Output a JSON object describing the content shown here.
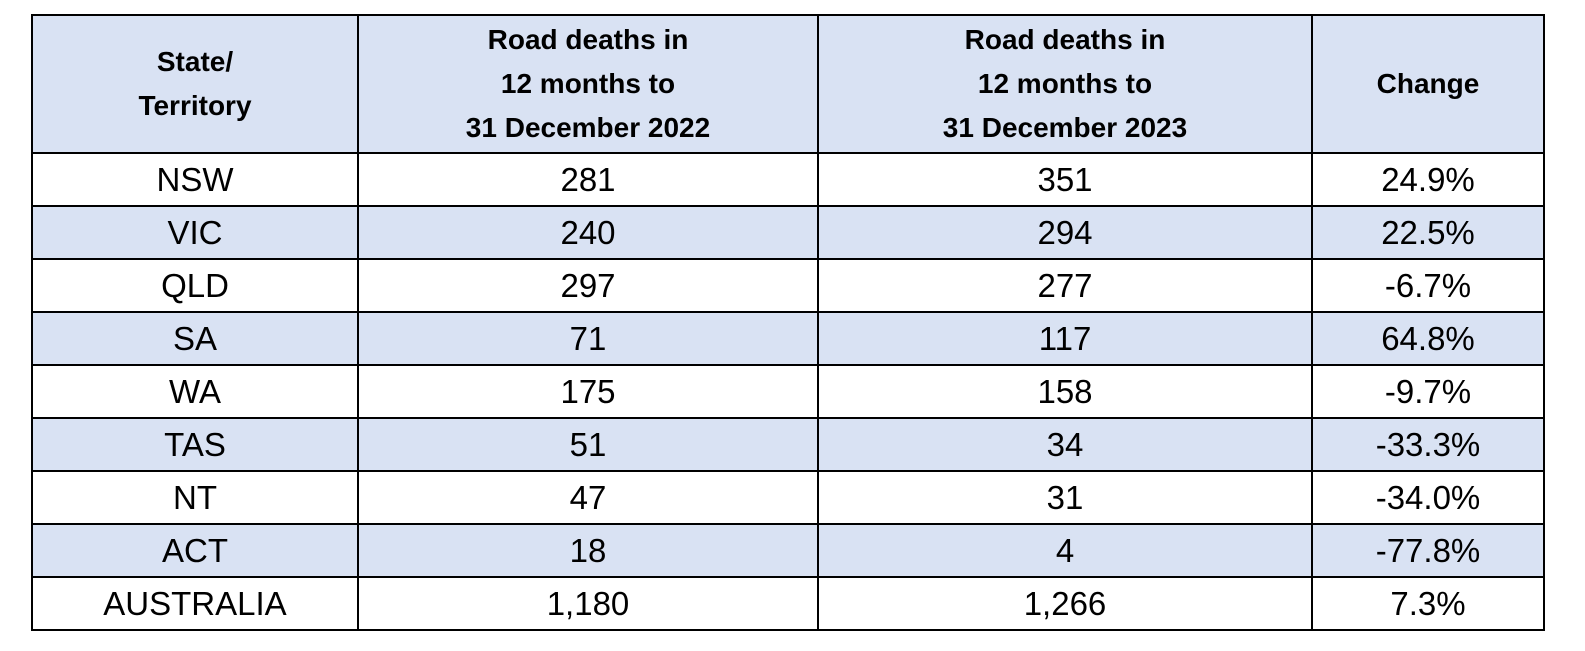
{
  "table": {
    "headers": {
      "state": [
        "State/",
        "Territory"
      ],
      "deaths_2022": [
        "Road deaths in",
        "12 months to",
        "31 December 2022"
      ],
      "deaths_2023": [
        "Road deaths in",
        "12 months to",
        "31 December 2023"
      ],
      "change": [
        "Change"
      ]
    },
    "rows": [
      {
        "state": "NSW",
        "deaths_2022": "281",
        "deaths_2023": "351",
        "change": "24.9%"
      },
      {
        "state": "VIC",
        "deaths_2022": "240",
        "deaths_2023": "294",
        "change": "22.5%"
      },
      {
        "state": "QLD",
        "deaths_2022": "297",
        "deaths_2023": "277",
        "change": "-6.7%"
      },
      {
        "state": "SA",
        "deaths_2022": "71",
        "deaths_2023": "117",
        "change": "64.8%"
      },
      {
        "state": "WA",
        "deaths_2022": "175",
        "deaths_2023": "158",
        "change": "-9.7%"
      },
      {
        "state": "TAS",
        "deaths_2022": "51",
        "deaths_2023": "34",
        "change": "-33.3%"
      },
      {
        "state": "NT",
        "deaths_2022": "47",
        "deaths_2023": "31",
        "change": "-34.0%"
      },
      {
        "state": "ACT",
        "deaths_2022": "18",
        "deaths_2023": "4",
        "change": "-77.8%"
      },
      {
        "state": "AUSTRALIA",
        "deaths_2022": "1,180",
        "deaths_2023": "1,266",
        "change": "7.3%"
      }
    ]
  },
  "colors": {
    "header_bg": "#d9e2f3",
    "alt_row_bg": "#d9e2f3",
    "border": "#000000"
  }
}
